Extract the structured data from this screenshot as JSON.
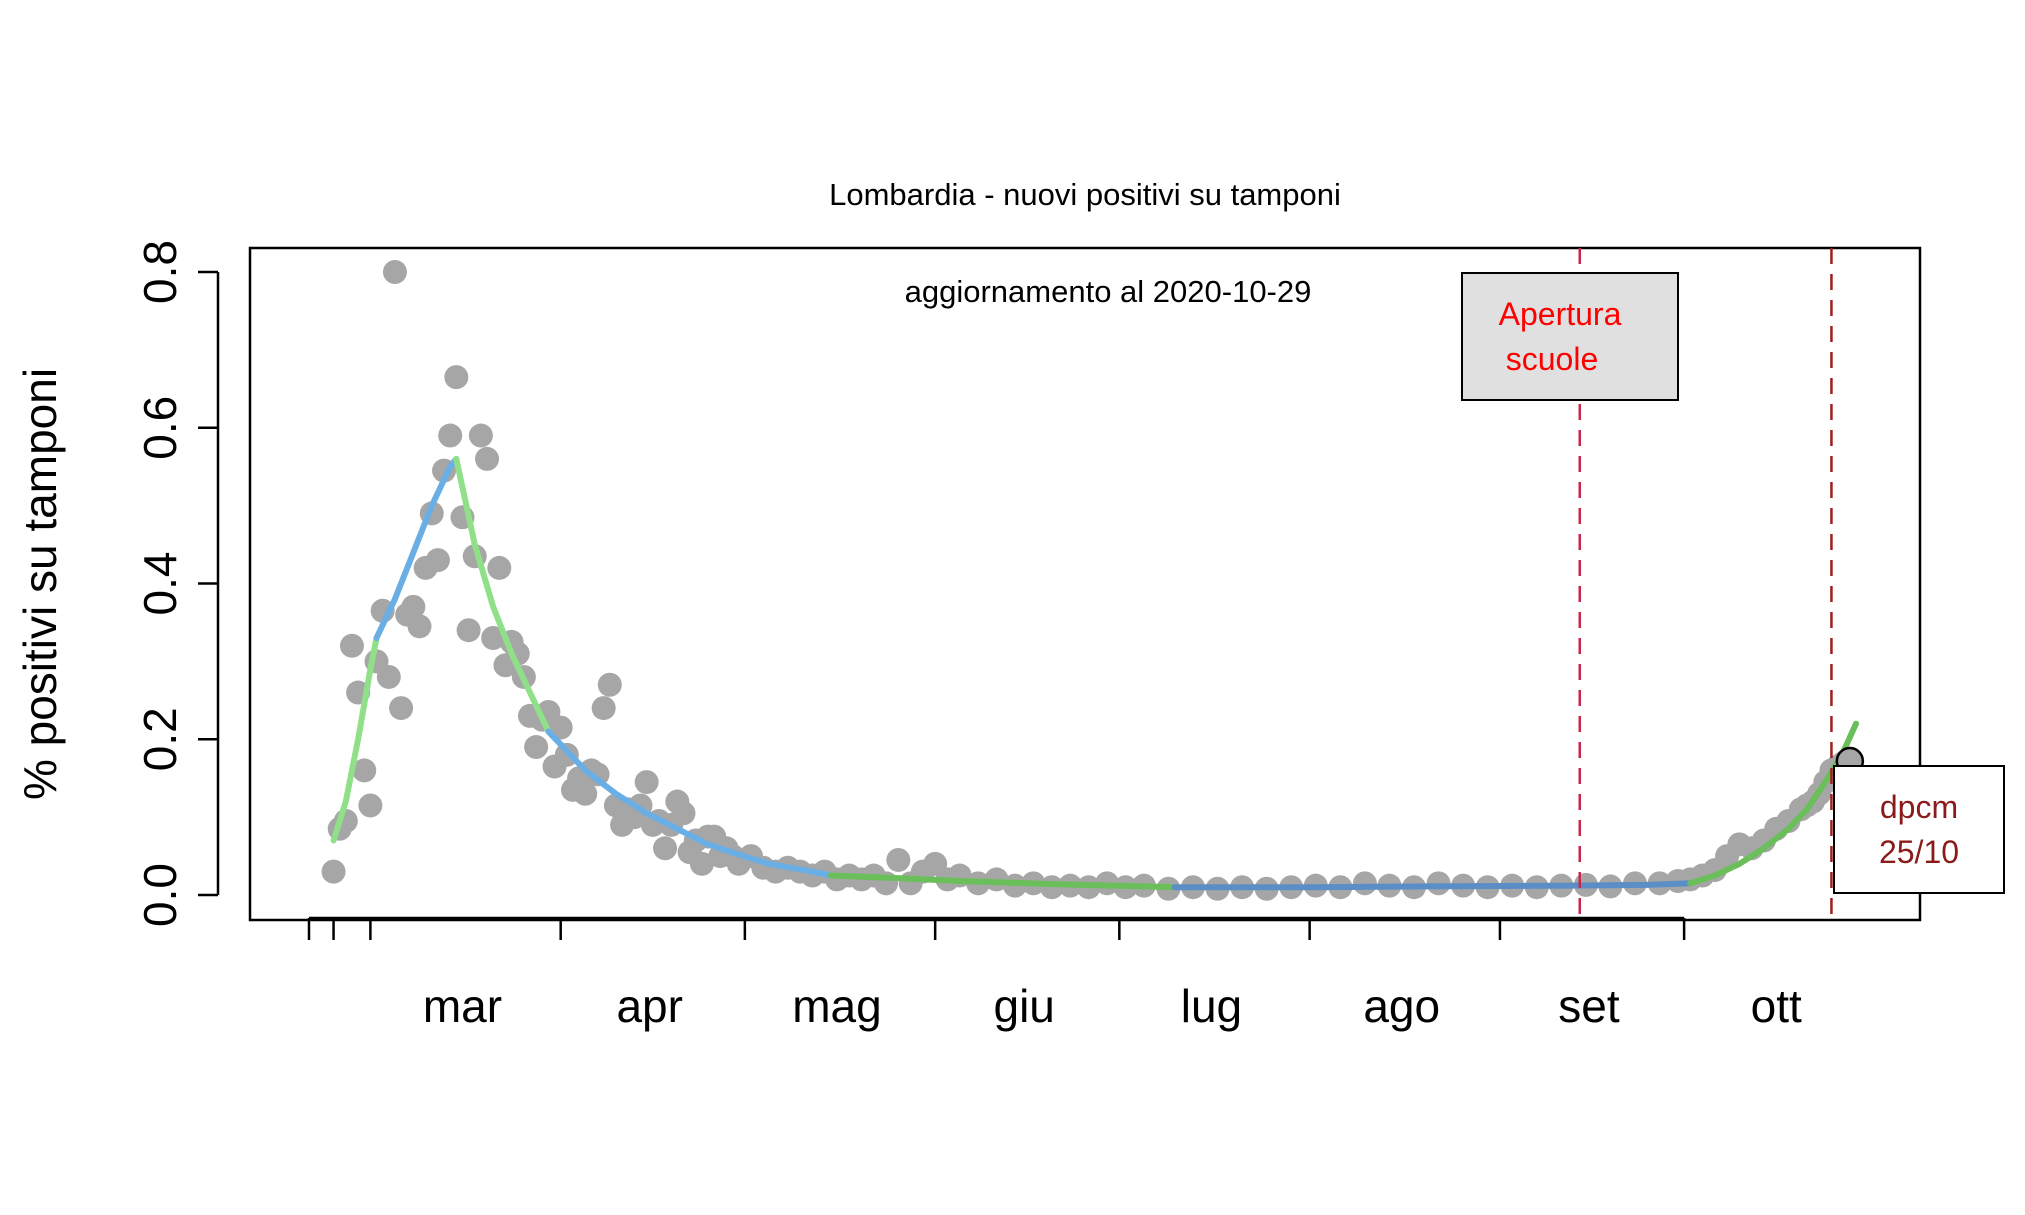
{
  "chart_data": {
    "type": "scatter",
    "title": "Lombardia - nuovi positivi su tamponi",
    "subtitle": "aggiornamento al 2020-10-29",
    "ylabel": "%  positivi su tamponi",
    "xlabel": "",
    "ylim": [
      0,
      0.8
    ],
    "yticks": [
      "0.0",
      "0.2",
      "0.4",
      "0.6",
      "0.8"
    ],
    "xlim": [
      "2020-02-20",
      "2020-10-29"
    ],
    "months": [
      {
        "label": "mar",
        "start": "2020-03-01",
        "end": "2020-03-31"
      },
      {
        "label": "apr",
        "start": "2020-04-01",
        "end": "2020-04-30"
      },
      {
        "label": "mag",
        "start": "2020-05-01",
        "end": "2020-05-31"
      },
      {
        "label": "giu",
        "start": "2020-06-01",
        "end": "2020-06-30"
      },
      {
        "label": "lug",
        "start": "2020-07-01",
        "end": "2020-07-31"
      },
      {
        "label": "ago",
        "start": "2020-08-01",
        "end": "2020-08-31"
      },
      {
        "label": "set",
        "start": "2020-09-01",
        "end": "2020-09-30"
      },
      {
        "label": "ott",
        "start": "2020-10-01",
        "end": "2020-10-31"
      }
    ],
    "points": [
      [
        "2020-02-24",
        0.03
      ],
      [
        "2020-02-25",
        0.085
      ],
      [
        "2020-02-26",
        0.095
      ],
      [
        "2020-02-27",
        0.32
      ],
      [
        "2020-02-28",
        0.26
      ],
      [
        "2020-02-29",
        0.16
      ],
      [
        "2020-03-01",
        0.115
      ],
      [
        "2020-03-02",
        0.3
      ],
      [
        "2020-03-03",
        0.365
      ],
      [
        "2020-03-04",
        0.28
      ],
      [
        "2020-03-05",
        0.8
      ],
      [
        "2020-03-06",
        0.24
      ],
      [
        "2020-03-07",
        0.36
      ],
      [
        "2020-03-08",
        0.37
      ],
      [
        "2020-03-09",
        0.345
      ],
      [
        "2020-03-10",
        0.42
      ],
      [
        "2020-03-11",
        0.49
      ],
      [
        "2020-03-12",
        0.43
      ],
      [
        "2020-03-13",
        0.545
      ],
      [
        "2020-03-14",
        0.59
      ],
      [
        "2020-03-15",
        0.665
      ],
      [
        "2020-03-16",
        0.485
      ],
      [
        "2020-03-17",
        0.34
      ],
      [
        "2020-03-18",
        0.435
      ],
      [
        "2020-03-19",
        0.59
      ],
      [
        "2020-03-20",
        0.56
      ],
      [
        "2020-03-21",
        0.33
      ],
      [
        "2020-03-22",
        0.42
      ],
      [
        "2020-03-23",
        0.295
      ],
      [
        "2020-03-24",
        0.325
      ],
      [
        "2020-03-25",
        0.31
      ],
      [
        "2020-03-26",
        0.28
      ],
      [
        "2020-03-27",
        0.23
      ],
      [
        "2020-03-28",
        0.19
      ],
      [
        "2020-03-29",
        0.225
      ],
      [
        "2020-03-30",
        0.235
      ],
      [
        "2020-03-31",
        0.165
      ],
      [
        "2020-04-01",
        0.215
      ],
      [
        "2020-04-02",
        0.18
      ],
      [
        "2020-04-03",
        0.135
      ],
      [
        "2020-04-04",
        0.15
      ],
      [
        "2020-04-05",
        0.13
      ],
      [
        "2020-04-06",
        0.16
      ],
      [
        "2020-04-07",
        0.155
      ],
      [
        "2020-04-08",
        0.24
      ],
      [
        "2020-04-09",
        0.27
      ],
      [
        "2020-04-10",
        0.115
      ],
      [
        "2020-04-11",
        0.09
      ],
      [
        "2020-04-12",
        0.11
      ],
      [
        "2020-04-13",
        0.1
      ],
      [
        "2020-04-14",
        0.115
      ],
      [
        "2020-04-15",
        0.145
      ],
      [
        "2020-04-16",
        0.09
      ],
      [
        "2020-04-17",
        0.095
      ],
      [
        "2020-04-18",
        0.06
      ],
      [
        "2020-04-19",
        0.09
      ],
      [
        "2020-04-20",
        0.12
      ],
      [
        "2020-04-21",
        0.105
      ],
      [
        "2020-04-22",
        0.055
      ],
      [
        "2020-04-23",
        0.07
      ],
      [
        "2020-04-24",
        0.04
      ],
      [
        "2020-04-25",
        0.075
      ],
      [
        "2020-04-26",
        0.075
      ],
      [
        "2020-04-27",
        0.05
      ],
      [
        "2020-04-28",
        0.06
      ],
      [
        "2020-04-29",
        0.05
      ],
      [
        "2020-04-30",
        0.04
      ],
      [
        "2020-05-02",
        0.05
      ],
      [
        "2020-05-04",
        0.035
      ],
      [
        "2020-05-06",
        0.03
      ],
      [
        "2020-05-08",
        0.035
      ],
      [
        "2020-05-10",
        0.03
      ],
      [
        "2020-05-12",
        0.025
      ],
      [
        "2020-05-14",
        0.03
      ],
      [
        "2020-05-16",
        0.02
      ],
      [
        "2020-05-18",
        0.025
      ],
      [
        "2020-05-20",
        0.02
      ],
      [
        "2020-05-22",
        0.025
      ],
      [
        "2020-05-24",
        0.015
      ],
      [
        "2020-05-26",
        0.045
      ],
      [
        "2020-05-28",
        0.015
      ],
      [
        "2020-05-30",
        0.03
      ],
      [
        "2020-06-01",
        0.04
      ],
      [
        "2020-06-03",
        0.02
      ],
      [
        "2020-06-05",
        0.025
      ],
      [
        "2020-06-08",
        0.015
      ],
      [
        "2020-06-11",
        0.02
      ],
      [
        "2020-06-14",
        0.012
      ],
      [
        "2020-06-17",
        0.015
      ],
      [
        "2020-06-20",
        0.01
      ],
      [
        "2020-06-23",
        0.012
      ],
      [
        "2020-06-26",
        0.01
      ],
      [
        "2020-06-29",
        0.015
      ],
      [
        "2020-07-02",
        0.01
      ],
      [
        "2020-07-05",
        0.012
      ],
      [
        "2020-07-09",
        0.008
      ],
      [
        "2020-07-13",
        0.01
      ],
      [
        "2020-07-17",
        0.008
      ],
      [
        "2020-07-21",
        0.01
      ],
      [
        "2020-07-25",
        0.008
      ],
      [
        "2020-07-29",
        0.01
      ],
      [
        "2020-08-02",
        0.012
      ],
      [
        "2020-08-06",
        0.01
      ],
      [
        "2020-08-10",
        0.015
      ],
      [
        "2020-08-14",
        0.012
      ],
      [
        "2020-08-18",
        0.01
      ],
      [
        "2020-08-22",
        0.015
      ],
      [
        "2020-08-26",
        0.012
      ],
      [
        "2020-08-30",
        0.01
      ],
      [
        "2020-09-03",
        0.012
      ],
      [
        "2020-09-07",
        0.01
      ],
      [
        "2020-09-11",
        0.012
      ],
      [
        "2020-09-15",
        0.013
      ],
      [
        "2020-09-19",
        0.011
      ],
      [
        "2020-09-23",
        0.015
      ],
      [
        "2020-09-27",
        0.015
      ],
      [
        "2020-09-30",
        0.018
      ],
      [
        "2020-10-02",
        0.02
      ],
      [
        "2020-10-04",
        0.025
      ],
      [
        "2020-10-06",
        0.032
      ],
      [
        "2020-10-08",
        0.05
      ],
      [
        "2020-10-10",
        0.065
      ],
      [
        "2020-10-12",
        0.06
      ],
      [
        "2020-10-14",
        0.07
      ],
      [
        "2020-10-16",
        0.085
      ],
      [
        "2020-10-18",
        0.095
      ],
      [
        "2020-10-20",
        0.11
      ],
      [
        "2020-10-21",
        0.115
      ],
      [
        "2020-10-22",
        0.12
      ],
      [
        "2020-10-23",
        0.13
      ],
      [
        "2020-10-24",
        0.145
      ],
      [
        "2020-10-25",
        0.16
      ],
      [
        "2020-10-26",
        0.165
      ],
      [
        "2020-10-27",
        0.17
      ]
    ],
    "last_point": {
      "x": "2020-10-28",
      "y": 0.172
    },
    "fits": [
      {
        "color": "#90e08a",
        "points": [
          [
            "2020-02-24",
            0.07
          ],
          [
            "2020-02-26",
            0.12
          ],
          [
            "2020-02-28",
            0.2
          ],
          [
            "2020-03-01",
            0.29
          ],
          [
            "2020-03-02",
            0.33
          ]
        ]
      },
      {
        "color": "#6aaee6",
        "points": [
          [
            "2020-03-02",
            0.33
          ],
          [
            "2020-03-05",
            0.38
          ],
          [
            "2020-03-08",
            0.44
          ],
          [
            "2020-03-11",
            0.5
          ],
          [
            "2020-03-14",
            0.55
          ],
          [
            "2020-03-15",
            0.56
          ]
        ]
      },
      {
        "color": "#90e08a",
        "points": [
          [
            "2020-03-15",
            0.56
          ],
          [
            "2020-03-18",
            0.45
          ],
          [
            "2020-03-21",
            0.37
          ],
          [
            "2020-03-24",
            0.31
          ],
          [
            "2020-03-27",
            0.26
          ],
          [
            "2020-03-30",
            0.21
          ]
        ]
      },
      {
        "color": "#6aaee6",
        "points": [
          [
            "2020-03-30",
            0.21
          ],
          [
            "2020-04-05",
            0.16
          ],
          [
            "2020-04-10",
            0.13
          ],
          [
            "2020-04-15",
            0.105
          ],
          [
            "2020-04-20",
            0.085
          ],
          [
            "2020-04-25",
            0.065
          ],
          [
            "2020-04-30",
            0.052
          ],
          [
            "2020-05-05",
            0.04
          ],
          [
            "2020-05-10",
            0.033
          ],
          [
            "2020-05-15",
            0.025
          ]
        ]
      },
      {
        "color": "#6abf5a",
        "points": [
          [
            "2020-05-15",
            0.025
          ],
          [
            "2020-05-25",
            0.022
          ],
          [
            "2020-06-05",
            0.018
          ],
          [
            "2020-06-20",
            0.014
          ],
          [
            "2020-07-05",
            0.011
          ],
          [
            "2020-07-10",
            0.01
          ]
        ]
      },
      {
        "color": "#5b8ec6",
        "points": [
          [
            "2020-07-10",
            0.01
          ],
          [
            "2020-08-01",
            0.01
          ],
          [
            "2020-08-20",
            0.011
          ],
          [
            "2020-09-10",
            0.012
          ],
          [
            "2020-09-25",
            0.013
          ],
          [
            "2020-10-02",
            0.015
          ]
        ]
      },
      {
        "color": "#6abf5a",
        "points": [
          [
            "2020-10-02",
            0.015
          ],
          [
            "2020-10-06",
            0.025
          ],
          [
            "2020-10-10",
            0.04
          ],
          [
            "2020-10-14",
            0.06
          ],
          [
            "2020-10-18",
            0.085
          ],
          [
            "2020-10-21",
            0.11
          ],
          [
            "2020-10-24",
            0.145
          ],
          [
            "2020-10-27",
            0.185
          ],
          [
            "2020-10-29",
            0.22
          ]
        ]
      }
    ],
    "vlines": [
      {
        "x": "2020-09-14",
        "color": "#c8264a"
      },
      {
        "x": "2020-10-25",
        "color": "#a01e1e"
      }
    ],
    "annotations": {
      "apertura": {
        "line1": "Apertura",
        "line2": "scuole",
        "color": "#ff0000",
        "fill": "#e0e0e0"
      },
      "dpcm": {
        "line1": "dpcm",
        "line2": "25/10",
        "color": "#8b1a1a",
        "fill": "#ffffff"
      }
    },
    "colors": {
      "points": "#a6a6a6",
      "axis": "#000000"
    },
    "grid": false
  }
}
